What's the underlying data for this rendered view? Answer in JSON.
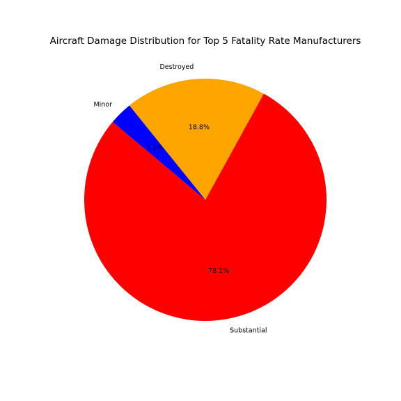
{
  "chart_data": {
    "type": "pie",
    "title": "Aircraft Damage Distribution for Top 5 Fatality Rate Manufacturers",
    "slices": [
      {
        "label": "Substantial",
        "value": 78.1,
        "pct_label": "78.1%",
        "color": "#ff0000"
      },
      {
        "label": "Destroyed",
        "value": 18.8,
        "pct_label": "18.8%",
        "color": "#ffa500"
      },
      {
        "label": "Minor",
        "value": 3.1,
        "pct_label": "3.1%",
        "color": "#0000ff"
      }
    ],
    "start_angle_deg": 140,
    "direction": "counterclockwise",
    "legend": "none"
  }
}
